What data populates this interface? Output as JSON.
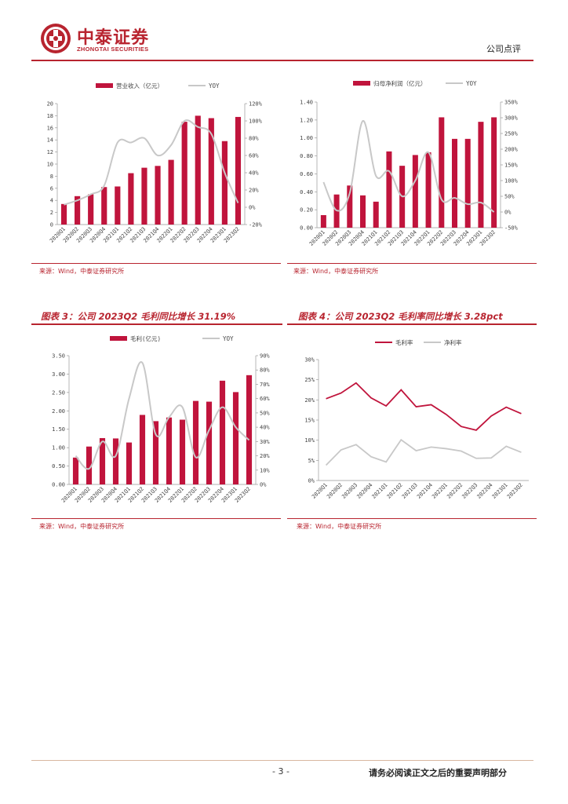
{
  "header": {
    "company_cn": "中泰证券",
    "company_en": "ZHONGTAI SECURITIES",
    "report_type": "公司点评"
  },
  "colors": {
    "accent": "#b8242f",
    "bar": "#c0143c",
    "yoy": "#c8c8c8"
  },
  "figures": [
    {
      "id": "fig1",
      "title": "",
      "source": "来源：Wind，中泰证券研究所"
    },
    {
      "id": "fig2",
      "title": "",
      "source": "来源：Wind，中泰证券研究所"
    },
    {
      "id": "fig3",
      "title": "图表 3：公司 2023Q2 毛利同比增长 31.19%",
      "source": "来源：Wind，中泰证券研究所"
    },
    {
      "id": "fig4",
      "title": "图表 4：公司 2023Q2 毛利率同比增长 3.28pct",
      "source": "来源：Wind，中泰证券研究所"
    }
  ],
  "chart_data": [
    {
      "type": "bar",
      "categories": [
        "2020Q1",
        "2020Q2",
        "2020Q3",
        "2020Q4",
        "2021Q1",
        "2021Q2",
        "2021Q3",
        "2021Q4",
        "2022Q1",
        "2022Q2",
        "2022Q3",
        "2022Q4",
        "2023Q1",
        "2023Q2"
      ],
      "series": [
        {
          "name": "营业收入（亿元）",
          "axis": "left",
          "kind": "bar",
          "values": [
            3.4,
            4.7,
            5.0,
            6.2,
            6.3,
            8.5,
            9.4,
            9.7,
            10.7,
            17.0,
            18.0,
            17.6,
            13.8,
            17.8
          ]
        },
        {
          "name": "YOY",
          "axis": "right",
          "kind": "line",
          "values": [
            0.03,
            0.08,
            0.15,
            0.25,
            0.75,
            0.75,
            0.8,
            0.6,
            0.72,
            1.0,
            0.93,
            0.85,
            0.4,
            0.05
          ]
        }
      ],
      "ylim_left": [
        0,
        20
      ],
      "yticks_left": [
        0,
        2,
        4,
        6,
        8,
        10,
        12,
        14,
        16,
        18,
        20
      ],
      "ylim_right": [
        -0.2,
        1.2
      ],
      "yticks_right": [
        "-20%",
        "0%",
        "20%",
        "40%",
        "60%",
        "80%",
        "100%",
        "120%"
      ]
    },
    {
      "type": "bar",
      "categories": [
        "2020Q1",
        "2020Q2",
        "2020Q3",
        "2020Q4",
        "2021Q1",
        "2021Q2",
        "2021Q3",
        "2021Q4",
        "2022Q1",
        "2022Q2",
        "2022Q3",
        "2022Q4",
        "2023Q1",
        "2023Q2"
      ],
      "series": [
        {
          "name": "归母净利润（亿元）",
          "axis": "left",
          "kind": "bar",
          "values": [
            0.14,
            0.37,
            0.47,
            0.36,
            0.29,
            0.85,
            0.69,
            0.81,
            0.84,
            1.23,
            0.99,
            0.99,
            1.18,
            1.23
          ]
        },
        {
          "name": "YOY",
          "axis": "right",
          "kind": "line",
          "values": [
            0.95,
            0.05,
            0.6,
            2.9,
            1.15,
            1.3,
            0.5,
            1.0,
            1.9,
            0.4,
            0.45,
            0.25,
            0.3,
            0.0
          ]
        }
      ],
      "ylim_left": [
        0,
        1.4
      ],
      "yticks_left": [
        "0.00",
        "0.20",
        "0.40",
        "0.60",
        "0.80",
        "1.00",
        "1.20",
        "1.40"
      ],
      "ylim_right": [
        -0.5,
        3.5
      ],
      "yticks_right": [
        "-50%",
        "0%",
        "50%",
        "100%",
        "150%",
        "200%",
        "250%",
        "300%",
        "350%"
      ]
    },
    {
      "type": "bar",
      "categories": [
        "2020Q1",
        "2020Q2",
        "2020Q3",
        "2020Q4",
        "2021Q1",
        "2021Q2",
        "2021Q3",
        "2021Q4",
        "2022Q1",
        "2022Q2",
        "2022Q3",
        "2022Q4",
        "2023Q1",
        "2023Q2"
      ],
      "series": [
        {
          "name": "毛利(亿元)",
          "axis": "left",
          "kind": "bar",
          "values": [
            0.73,
            1.03,
            1.26,
            1.25,
            1.14,
            1.89,
            1.72,
            1.82,
            1.76,
            2.27,
            2.25,
            2.82,
            2.51,
            2.97
          ]
        },
        {
          "name": "YOY",
          "axis": "right",
          "kind": "line",
          "values": [
            0.2,
            0.11,
            0.3,
            0.2,
            0.6,
            0.85,
            0.35,
            0.47,
            0.54,
            0.19,
            0.38,
            0.54,
            0.4,
            0.31
          ]
        }
      ],
      "ylim_left": [
        0,
        3.5
      ],
      "yticks_left": [
        "0.00",
        "0.50",
        "1.00",
        "1.50",
        "2.00",
        "2.50",
        "3.00",
        "3.50"
      ],
      "ylim_right": [
        0,
        0.9
      ],
      "yticks_right": [
        "0%",
        "10%",
        "20%",
        "30%",
        "40%",
        "50%",
        "60%",
        "70%",
        "80%",
        "90%"
      ]
    },
    {
      "type": "line",
      "categories": [
        "2020Q1",
        "2020Q2",
        "2020Q3",
        "2020Q4",
        "2021Q1",
        "2021Q2",
        "2021Q3",
        "2021Q4",
        "2022Q1",
        "2022Q2",
        "2022Q3",
        "2022Q4",
        "2023Q1",
        "2023Q2"
      ],
      "series": [
        {
          "name": "毛利率",
          "values": [
            0.203,
            0.217,
            0.242,
            0.205,
            0.185,
            0.225,
            0.183,
            0.188,
            0.164,
            0.134,
            0.125,
            0.16,
            0.182,
            0.166
          ]
        },
        {
          "name": "净利率",
          "values": [
            0.038,
            0.076,
            0.089,
            0.059,
            0.046,
            0.101,
            0.074,
            0.083,
            0.079,
            0.073,
            0.055,
            0.056,
            0.085,
            0.07
          ]
        }
      ],
      "ylim": [
        0,
        0.3
      ],
      "yticks": [
        "0%",
        "5%",
        "10%",
        "15%",
        "20%",
        "25%",
        "30%"
      ]
    }
  ],
  "footer": {
    "page": "- 3 -",
    "note": "请务必阅读正文之后的重要声明部分"
  }
}
